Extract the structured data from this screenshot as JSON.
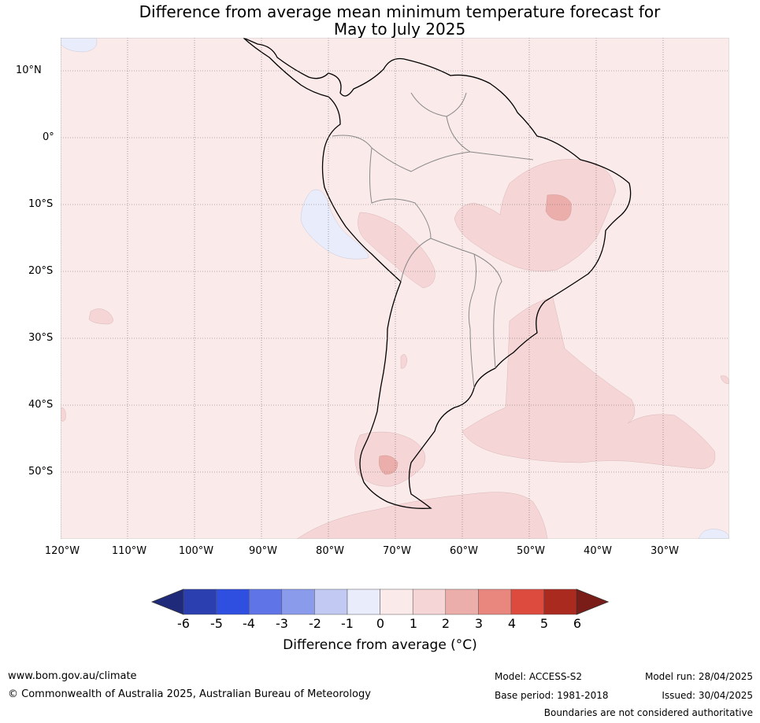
{
  "title": {
    "line1": "Difference from average mean minimum temperature forecast for",
    "line2": "May to July 2025"
  },
  "map": {
    "region": "South America",
    "lat_labels": [
      "10°N",
      "0°",
      "10°S",
      "20°S",
      "30°S",
      "40°S",
      "50°S"
    ],
    "lon_labels": [
      "120°W",
      "110°W",
      "100°W",
      "90°W",
      "80°W",
      "70°W",
      "60°W",
      "50°W",
      "40°W",
      "30°W"
    ],
    "lat_range": [
      -60,
      15
    ],
    "lon_range": [
      -120,
      -20
    ],
    "gridlines": true
  },
  "colorbar": {
    "title": "Difference from average (°C)",
    "ticks": [
      "-6",
      "-5",
      "-4",
      "-3",
      "-2",
      "-1",
      "0",
      "1",
      "2",
      "3",
      "4",
      "5",
      "6"
    ],
    "colors": [
      "#1f2b7a",
      "#2b3fb0",
      "#2f4fe0",
      "#5f74e6",
      "#8a9bec",
      "#c2caf4",
      "#e8ecfb",
      "#fbeaea",
      "#f5d5d5",
      "#ecaeaa",
      "#e9867e",
      "#dc4b3e",
      "#aa2a20",
      "#7a1c17"
    ]
  },
  "footer": {
    "website": "www.bom.gov.au/climate",
    "copyright": "© Commonwealth of Australia 2025, Australian Bureau of Meteorology",
    "model": "Model: ACCESS-S2",
    "base_period": "Base period: 1981-2018",
    "model_run": "Model run: 28/04/2025",
    "issued": "Issued: 30/04/2025",
    "disclaimer": "Boundaries are not considered authoritative"
  }
}
